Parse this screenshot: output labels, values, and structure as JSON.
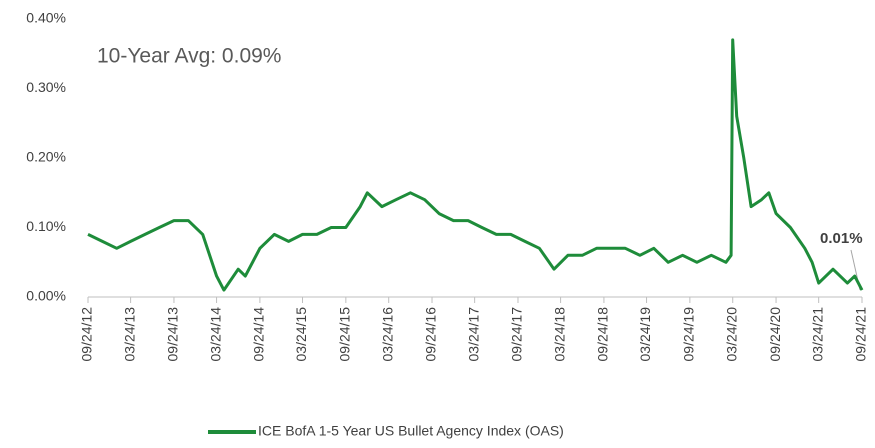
{
  "chart_data": {
    "type": "line",
    "annotations": [
      "10-Year Avg:  0.09%",
      "0.01%"
    ],
    "x": [
      "09/24/12",
      "11/24/12",
      "01/24/13",
      "03/24/13",
      "05/24/13",
      "07/24/13",
      "09/24/13",
      "11/24/13",
      "01/24/14",
      "03/24/14",
      "04/24/14",
      "06/24/14",
      "07/24/14",
      "09/24/14",
      "11/24/14",
      "01/24/15",
      "03/24/15",
      "05/24/15",
      "07/24/15",
      "09/24/15",
      "11/24/15",
      "12/24/15",
      "02/24/16",
      "04/24/16",
      "06/24/16",
      "08/24/16",
      "10/24/16",
      "12/24/16",
      "02/24/17",
      "04/24/17",
      "06/24/17",
      "08/24/17",
      "10/24/17",
      "12/24/17",
      "02/24/18",
      "04/24/18",
      "06/24/18",
      "08/24/18",
      "10/24/18",
      "12/24/18",
      "02/24/19",
      "04/24/19",
      "06/24/19",
      "08/24/19",
      "10/24/19",
      "12/24/19",
      "02/24/20",
      "03/17/20",
      "03/24/20",
      "04/10/20",
      "05/10/20",
      "06/10/20",
      "07/24/20",
      "08/24/20",
      "09/24/20",
      "11/24/20",
      "01/24/21",
      "02/24/21",
      "03/24/21",
      "05/24/21",
      "07/24/21",
      "08/24/21",
      "09/24/21"
    ],
    "series": [
      {
        "name": "ICE BofA 1-5 Year US Bullet Agency Index (OAS)",
        "color": "#1e8c3a",
        "values": [
          0.09,
          0.08,
          0.07,
          0.08,
          0.09,
          0.1,
          0.11,
          0.11,
          0.09,
          0.03,
          0.01,
          0.04,
          0.03,
          0.07,
          0.09,
          0.08,
          0.09,
          0.09,
          0.1,
          0.1,
          0.13,
          0.15,
          0.13,
          0.14,
          0.15,
          0.14,
          0.12,
          0.11,
          0.11,
          0.1,
          0.09,
          0.09,
          0.08,
          0.07,
          0.04,
          0.06,
          0.06,
          0.07,
          0.07,
          0.07,
          0.06,
          0.07,
          0.05,
          0.06,
          0.05,
          0.06,
          0.05,
          0.06,
          0.37,
          0.26,
          0.2,
          0.13,
          0.14,
          0.15,
          0.12,
          0.1,
          0.07,
          0.05,
          0.02,
          0.04,
          0.02,
          0.03,
          0.01
        ]
      }
    ],
    "xlim": [
      "09/24/12",
      "09/24/21"
    ],
    "xticks": [
      "09/24/12",
      "03/24/13",
      "09/24/13",
      "03/24/14",
      "09/24/14",
      "03/24/15",
      "09/24/15",
      "03/24/16",
      "09/24/16",
      "03/24/17",
      "09/24/17",
      "03/24/18",
      "09/24/18",
      "03/24/19",
      "09/24/19",
      "03/24/20",
      "09/24/20",
      "03/24/21",
      "09/24/21"
    ],
    "ylim": [
      0,
      0.4
    ],
    "yticks": [
      {
        "value": 0,
        "label": "0.00%"
      },
      {
        "value": 0.1,
        "label": "0.10%"
      },
      {
        "value": 0.2,
        "label": "0.20%"
      },
      {
        "value": 0.3,
        "label": "0.30%"
      },
      {
        "value": 0.4,
        "label": "0.40%"
      }
    ],
    "grid": false
  }
}
